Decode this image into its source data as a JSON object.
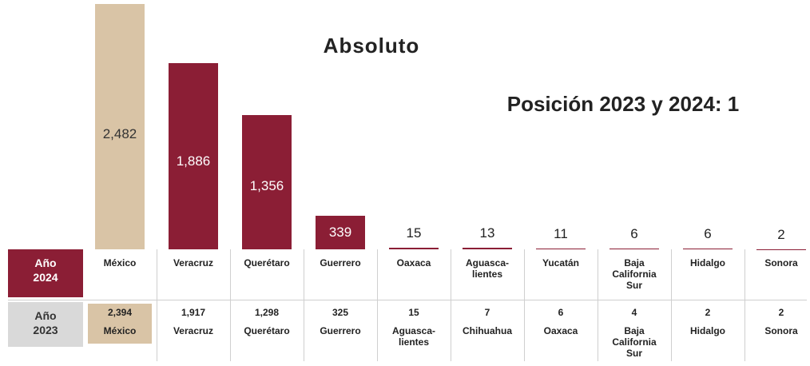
{
  "chart_data": {
    "type": "bar",
    "title": "Absoluto",
    "subtitle": "Posición 2023 y 2024: 1",
    "highlight_color": "#d9c4a6",
    "color": "#8b1e35",
    "categories": [
      "México",
      "Veracruz",
      "Querétaro",
      "Guerrero",
      "Oaxaca",
      "Aguasca-\nlientes",
      "Yucatán",
      "Baja\nCalifornia\nSur",
      "Hidalgo",
      "Sonora"
    ],
    "values": [
      2482,
      1886,
      1356,
      339,
      15,
      13,
      11,
      6,
      6,
      2
    ],
    "value_labels": [
      "2,482",
      "1,886",
      "1,356",
      "339",
      "15",
      "13",
      "11",
      "6",
      "6",
      "2"
    ],
    "row_label": "Año\n2024",
    "comparison": {
      "row_label": "Año\n2023",
      "categories": [
        "México",
        "Veracruz",
        "Querétaro",
        "Guerrero",
        "Aguasca-\nlientes",
        "Chihuahua",
        "Oaxaca",
        "Baja\nCalifornia\nSur",
        "Hidalgo",
        "Sonora"
      ],
      "values": [
        2394,
        1917,
        1298,
        325,
        15,
        7,
        6,
        4,
        2,
        2
      ],
      "value_labels": [
        "2,394",
        "1,917",
        "1,298",
        "325",
        "15",
        "7",
        "6",
        "4",
        "2",
        "2"
      ]
    }
  }
}
